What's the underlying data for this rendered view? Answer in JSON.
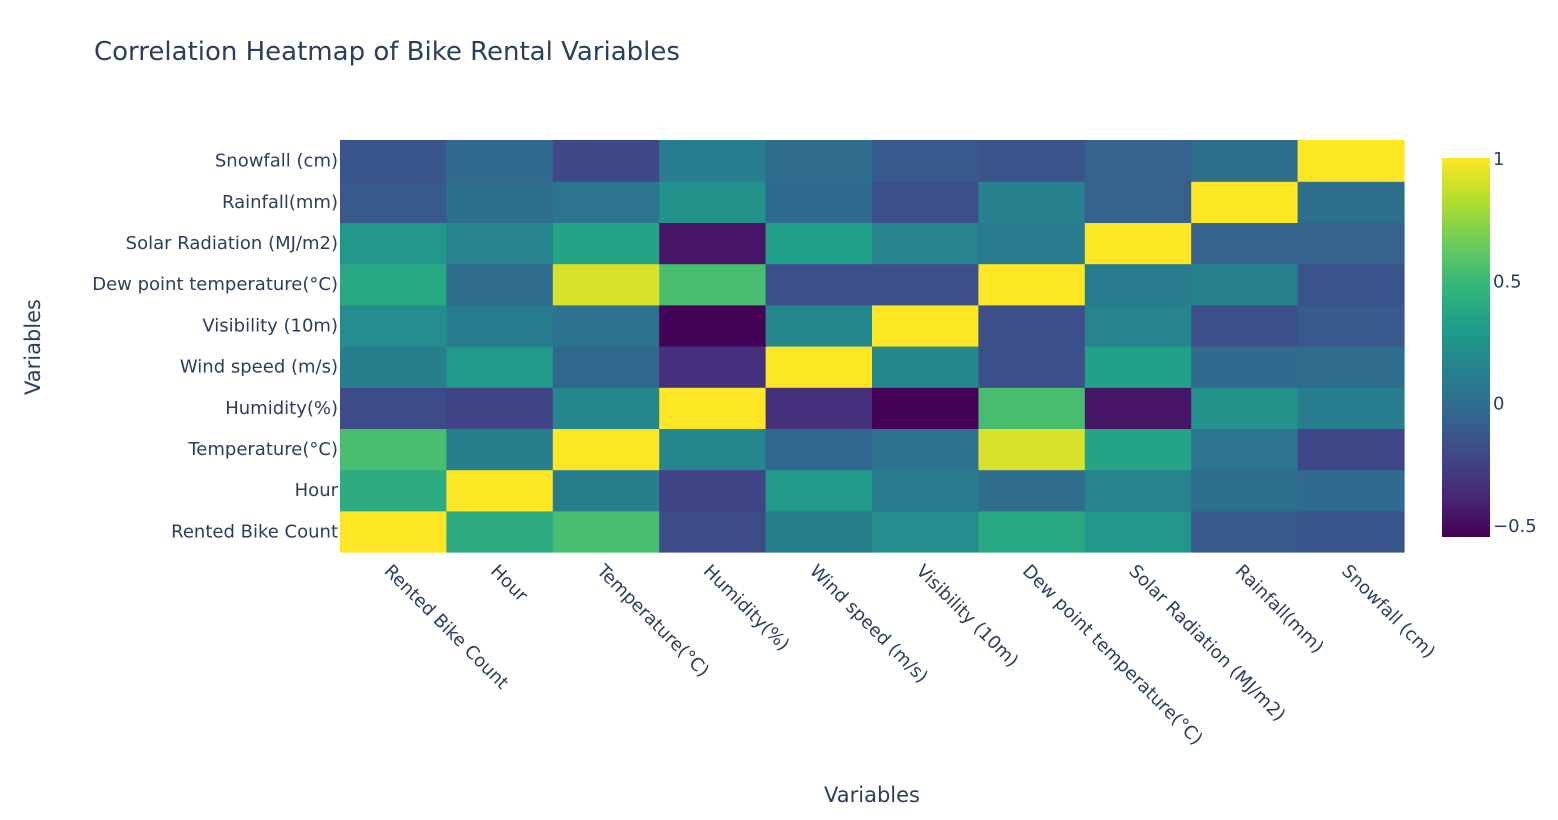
{
  "chart_data": {
    "type": "heatmap",
    "title": "Correlation Heatmap of Bike Rental Variables",
    "xlabel": "Variables",
    "ylabel": "Variables",
    "x": [
      "Rented Bike Count",
      "Hour",
      "Temperature(°C)",
      "Humidity(%)",
      "Wind speed (m/s)",
      "Visibility (10m)",
      "Dew point temperature(°C)",
      "Solar Radiation (MJ/m2)",
      "Rainfall(mm)",
      "Snowfall (cm)"
    ],
    "y": [
      "Rented Bike Count",
      "Hour",
      "Temperature(°C)",
      "Humidity(%)",
      "Wind speed (m/s)",
      "Visibility (10m)",
      "Dew point temperature(°C)",
      "Solar Radiation (MJ/m2)",
      "Rainfall(mm)",
      "Snowfall (cm)"
    ],
    "z": [
      [
        1.0,
        0.41,
        0.54,
        -0.2,
        0.12,
        0.2,
        0.38,
        0.26,
        -0.12,
        -0.14
      ],
      [
        0.41,
        1.0,
        0.12,
        -0.24,
        0.29,
        0.1,
        0.0,
        0.15,
        0.01,
        -0.02
      ],
      [
        0.54,
        0.12,
        1.0,
        0.16,
        -0.04,
        0.03,
        0.91,
        0.35,
        0.05,
        -0.22
      ],
      [
        -0.2,
        -0.24,
        0.16,
        1.0,
        -0.34,
        -0.54,
        0.54,
        -0.46,
        0.24,
        0.11
      ],
      [
        0.12,
        0.29,
        -0.04,
        -0.34,
        1.0,
        0.17,
        -0.18,
        0.33,
        -0.02,
        -0.0
      ],
      [
        0.2,
        0.1,
        0.03,
        -0.54,
        0.17,
        1.0,
        -0.18,
        0.15,
        -0.17,
        -0.12
      ],
      [
        0.38,
        0.0,
        0.91,
        0.54,
        -0.18,
        -0.18,
        1.0,
        0.09,
        0.13,
        -0.15
      ],
      [
        0.26,
        0.15,
        0.35,
        -0.46,
        0.33,
        0.15,
        0.09,
        1.0,
        -0.07,
        -0.07
      ],
      [
        -0.12,
        0.01,
        0.05,
        0.24,
        -0.02,
        -0.17,
        0.13,
        -0.07,
        1.0,
        0.01
      ],
      [
        -0.14,
        -0.02,
        -0.22,
        0.11,
        -0.0,
        -0.12,
        -0.15,
        -0.07,
        0.01,
        1.0
      ]
    ],
    "zrange": [
      -0.55,
      1.0
    ],
    "colorscale": "Viridis",
    "colorbar_ticks": [
      1,
      0.5,
      0,
      -0.5
    ],
    "colorbar_tick_labels": [
      "1",
      "0.5",
      "0",
      "−0.5"
    ]
  }
}
